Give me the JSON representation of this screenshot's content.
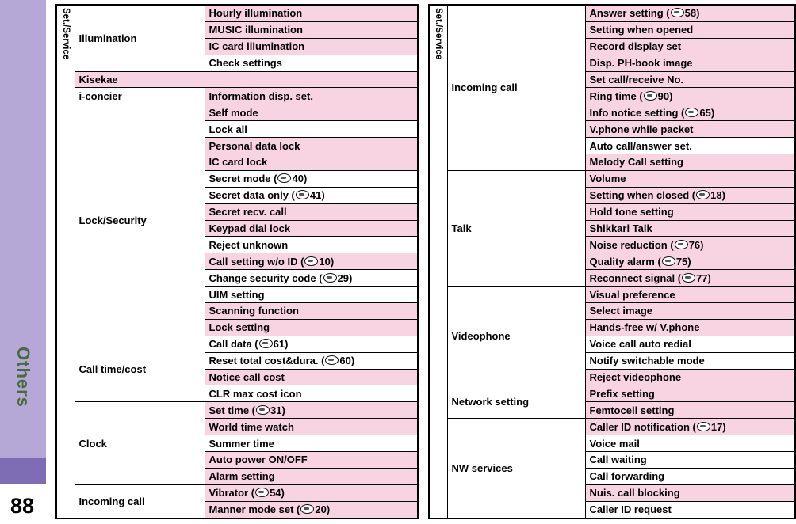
{
  "page": {
    "side_tab_label": "Others",
    "page_number": "88"
  },
  "colors": {
    "pink": "#f8d3e2",
    "white": "#ffffff",
    "lavender": "#b5a8d6",
    "tab_block": "#7e6cb4",
    "tab_text": "#476b3c",
    "border": "#000000"
  },
  "tables": [
    {
      "side_label": "Set./Service",
      "groups": [
        {
          "category": "Illumination",
          "items": [
            {
              "text": "Hourly illumination",
              "shade": "pink"
            },
            {
              "text": "MUSIC illumination",
              "shade": "pink"
            },
            {
              "text": "IC card illumination",
              "shade": "pink"
            },
            {
              "text": "Check settings",
              "shade": "white"
            }
          ]
        },
        {
          "category": "Kisekae",
          "full_row": true,
          "shade": "pink",
          "items": []
        },
        {
          "category": "i-concier",
          "items": [
            {
              "text": "Information disp. set.",
              "shade": "pink"
            }
          ]
        },
        {
          "category": "Lock/Security",
          "items": [
            {
              "text": "Self mode",
              "shade": "pink"
            },
            {
              "text": "Lock all",
              "shade": "white"
            },
            {
              "text": "Personal data lock",
              "shade": "pink"
            },
            {
              "text": "IC card lock",
              "shade": "pink"
            },
            {
              "text": "Secret mode",
              "ref": "40",
              "shade": "white"
            },
            {
              "text": "Secret data only",
              "ref": "41",
              "shade": "white"
            },
            {
              "text": "Secret recv. call",
              "shade": "pink"
            },
            {
              "text": "Keypad dial lock",
              "shade": "pink"
            },
            {
              "text": "Reject unknown",
              "shade": "white"
            },
            {
              "text": "Call setting w/o ID",
              "ref": "10",
              "shade": "pink"
            },
            {
              "text": "Change security code",
              "ref": "29",
              "shade": "white"
            },
            {
              "text": "UIM setting",
              "shade": "white"
            },
            {
              "text": "Scanning function",
              "shade": "pink"
            },
            {
              "text": "Lock setting",
              "shade": "pink"
            }
          ]
        },
        {
          "category": "Call time/cost",
          "items": [
            {
              "text": "Call data",
              "ref": "61",
              "shade": "white"
            },
            {
              "text": "Reset total cost&dura.",
              "ref": "60",
              "shade": "white"
            },
            {
              "text": "Notice call cost",
              "shade": "pink"
            },
            {
              "text": "CLR max cost icon",
              "shade": "white"
            }
          ]
        },
        {
          "category": "Clock",
          "items": [
            {
              "text": "Set time",
              "ref": "31",
              "shade": "pink"
            },
            {
              "text": "World time watch",
              "shade": "pink"
            },
            {
              "text": "Summer time",
              "shade": "white"
            },
            {
              "text": "Auto power ON/OFF",
              "shade": "pink"
            },
            {
              "text": "Alarm setting",
              "shade": "pink"
            }
          ]
        },
        {
          "category": "Incoming call",
          "items": [
            {
              "text": "Vibrator",
              "ref": "54",
              "shade": "pink"
            },
            {
              "text": "Manner mode set",
              "ref": "20",
              "shade": "pink"
            }
          ]
        }
      ]
    },
    {
      "side_label": "Set./Service",
      "groups": [
        {
          "category": "Incoming call",
          "items": [
            {
              "text": "Answer setting",
              "ref": "58",
              "shade": "pink"
            },
            {
              "text": "Setting when opened",
              "shade": "pink"
            },
            {
              "text": "Record display set",
              "shade": "pink"
            },
            {
              "text": "Disp. PH-book image",
              "shade": "pink"
            },
            {
              "text": "Set call/receive No.",
              "shade": "pink"
            },
            {
              "text": "Ring time",
              "ref": "90",
              "shade": "pink"
            },
            {
              "text": "Info notice setting",
              "ref": "65",
              "shade": "pink"
            },
            {
              "text": "V.phone while packet",
              "shade": "pink"
            },
            {
              "text": "Auto call/answer set.",
              "shade": "white"
            },
            {
              "text": "Melody Call setting",
              "shade": "pink"
            }
          ]
        },
        {
          "category": "Talk",
          "items": [
            {
              "text": "Volume",
              "shade": "pink"
            },
            {
              "text": "Setting when closed",
              "ref": "18",
              "shade": "pink"
            },
            {
              "text": "Hold tone setting",
              "shade": "pink"
            },
            {
              "text": "Shikkari Talk",
              "shade": "pink"
            },
            {
              "text": "Noise reduction",
              "ref": "76",
              "shade": "pink"
            },
            {
              "text": "Quality alarm",
              "ref": "75",
              "shade": "pink"
            },
            {
              "text": "Reconnect signal",
              "ref": "77",
              "shade": "pink"
            }
          ]
        },
        {
          "category": "Videophone",
          "items": [
            {
              "text": "Visual preference",
              "shade": "pink"
            },
            {
              "text": "Select image",
              "shade": "pink"
            },
            {
              "text": "Hands-free w/ V.phone",
              "shade": "pink"
            },
            {
              "text": "Voice call auto redial",
              "shade": "white"
            },
            {
              "text": "Notify switchable mode",
              "shade": "white"
            },
            {
              "text": "Reject videophone",
              "shade": "pink"
            }
          ]
        },
        {
          "category": "Network setting",
          "items": [
            {
              "text": "Prefix setting",
              "shade": "pink"
            },
            {
              "text": "Femtocell setting",
              "shade": "pink"
            }
          ]
        },
        {
          "category": "NW services",
          "items": [
            {
              "text": "Caller ID notification",
              "ref": "17",
              "shade": "pink"
            },
            {
              "text": "Voice mail",
              "shade": "white"
            },
            {
              "text": "Call waiting",
              "shade": "white"
            },
            {
              "text": "Call forwarding",
              "shade": "white"
            },
            {
              "text": "Nuis. call blocking",
              "shade": "pink"
            },
            {
              "text": "Caller ID request",
              "shade": "white"
            }
          ]
        }
      ]
    }
  ]
}
